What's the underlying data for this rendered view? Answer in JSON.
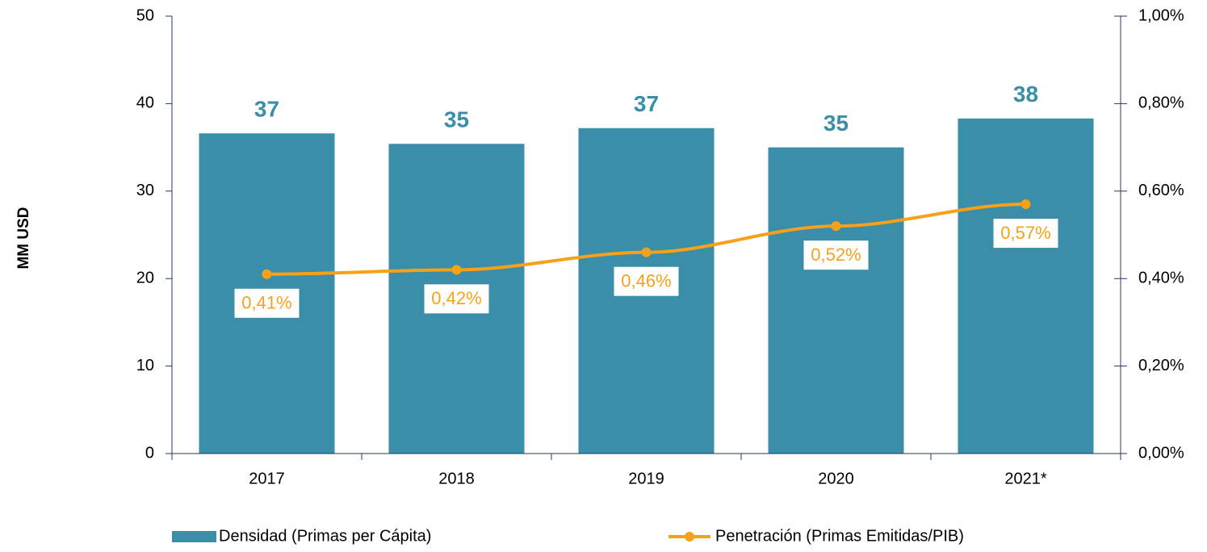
{
  "chart_data": {
    "type": "bar",
    "y_label": "MM USD",
    "categories": [
      "2017",
      "2018",
      "2019",
      "2020",
      "2021*"
    ],
    "series": [
      {
        "name": "Densidad (Primas per Cápita)",
        "color": "#3a8ea8",
        "values": [
          36.6,
          35.4,
          37.2,
          35.0,
          38.3
        ],
        "value_labels": [
          "37",
          "35",
          "37",
          "35",
          "38"
        ]
      },
      {
        "name": "Penetración (Primas Emitidas/PIB)",
        "type": "line",
        "axis": "y2",
        "color": "#f7a11a",
        "values": [
          0.41,
          0.42,
          0.46,
          0.52,
          0.57
        ],
        "value_labels": [
          "0,41%",
          "0,42%",
          "0,46%",
          "0,52%",
          "0,57%"
        ]
      }
    ],
    "ylim": [
      0,
      50
    ],
    "yticks": [
      0,
      10,
      20,
      30,
      40,
      50
    ],
    "y2lim": [
      0,
      1
    ],
    "y2ticks": [
      {
        "value": 0,
        "label": "0,00%"
      },
      {
        "value": 0.2,
        "label": "0,20%"
      },
      {
        "value": 0.4,
        "label": "0,40%"
      },
      {
        "value": 0.6,
        "label": "0,60%"
      },
      {
        "value": 0.8,
        "label": "0,80%"
      },
      {
        "value": 1,
        "label": "1,00%"
      }
    ],
    "legend": "bottom",
    "grid": false
  }
}
